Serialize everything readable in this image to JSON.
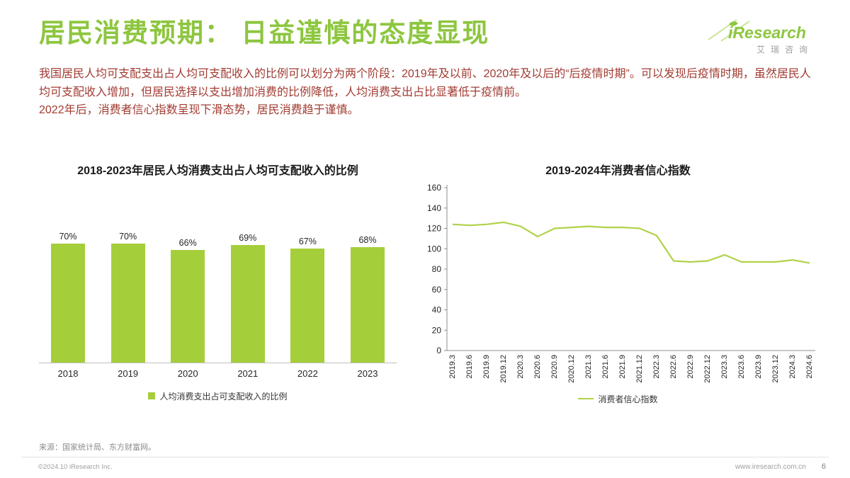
{
  "page": {
    "title": "居民消费预期： 日益谨慎的态度显现",
    "logo": {
      "brand": "iResearch",
      "brand_cn": "艾瑞咨询"
    },
    "paragraph1": "我国居民人均可支配支出占人均可支配收入的比例可以划分为两个阶段：2019年及以前、2020年及以后的“后疫情时期”。可以发现后疫情时期，虽然居民人均可支配收入增加，但居民选择以支出增加消费的比例降低，人均消费支出占比显著低于疫情前。",
    "paragraph2": "2022年后，消费者信心指数呈现下滑态势，居民消费趋于谨慎。",
    "source": "来源：国家统计局、东方财富网。",
    "copyright": "©2024.10 iResearch Inc.",
    "website": "www.iresearch.com.cn",
    "page_number": "6"
  },
  "colors": {
    "accent_green": "#8DC63F",
    "bar_green": "#A5CE3B",
    "line_green": "#B1D24A",
    "text_red": "#A23B32"
  },
  "chart_data": [
    {
      "type": "bar",
      "title": "2018-2023年居民人均消费支出占人均可支配收入的比例",
      "categories": [
        "2018",
        "2019",
        "2020",
        "2021",
        "2022",
        "2023"
      ],
      "values": [
        70,
        70,
        66,
        69,
        67,
        68
      ],
      "value_labels": [
        "70%",
        "70%",
        "66%",
        "69%",
        "67%",
        "68%"
      ],
      "legend": "人均消费支出占可支配收入的比例",
      "ylim": [
        0,
        80
      ],
      "grid": false,
      "y_axis_visible": false,
      "legend_position": "bottom"
    },
    {
      "type": "line",
      "title": "2019-2024年消费者信心指数",
      "x": [
        "2019.3",
        "2019.6",
        "2019.9",
        "2019.12",
        "2020.3",
        "2020.6",
        "2020.9",
        "2020.12",
        "2021.3",
        "2021.6",
        "2021.9",
        "2021.12",
        "2022.3",
        "2022.6",
        "2022.9",
        "2022.12",
        "2023.3",
        "2023.6",
        "2023.9",
        "2023.12",
        "2024.3",
        "2024.6"
      ],
      "values": [
        124,
        123,
        124,
        126,
        122,
        112,
        120,
        121,
        122,
        121,
        121,
        120,
        113,
        88,
        87,
        88,
        94,
        87,
        87,
        87,
        89,
        86
      ],
      "legend": "消费者信心指数",
      "ylim": [
        0,
        160
      ],
      "ytick_step": 20,
      "grid": false,
      "legend_position": "bottom"
    }
  ]
}
